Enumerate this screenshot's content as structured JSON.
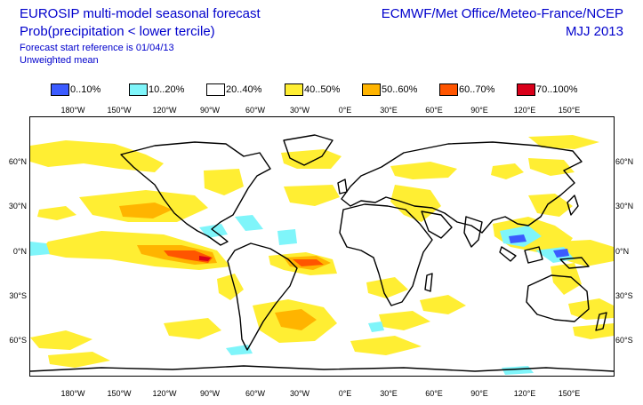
{
  "header": {
    "title_line1": "EUROSIP multi-model seasonal forecast",
    "title_line2": "Prob(precipitation < lower tercile)",
    "subtitle1": "Forecast start reference is 01/04/13",
    "subtitle2": "Unweighted mean",
    "centres": "ECMWF/Met Office/Meteo-France/NCEP",
    "season": "MJJ 2013"
  },
  "legend": [
    {
      "label": "0..10%",
      "color": "#3b5bff"
    },
    {
      "label": "10..20%",
      "color": "#7ff5fa"
    },
    {
      "label": "20..40%",
      "color": "#ffffff"
    },
    {
      "label": "40..50%",
      "color": "#ffee33"
    },
    {
      "label": "50..60%",
      "color": "#ffb400"
    },
    {
      "label": "60..70%",
      "color": "#ff5500"
    },
    {
      "label": "70..100%",
      "color": "#d9001a"
    }
  ],
  "axes": {
    "lon_labels": [
      "180°W",
      "150°W",
      "120°W",
      "90°W",
      "60°W",
      "30°W",
      "0°E",
      "30°E",
      "60°E",
      "90°E",
      "120°E",
      "150°E"
    ],
    "lat_labels": [
      "60°N",
      "30°N",
      "0°N",
      "30°S",
      "60°S"
    ]
  }
}
